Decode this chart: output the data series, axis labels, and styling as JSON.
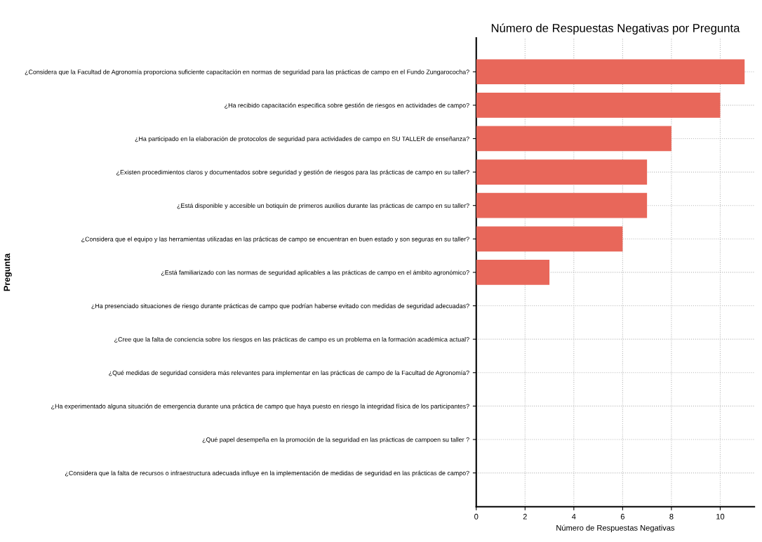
{
  "chart_data": {
    "type": "bar",
    "orientation": "horizontal",
    "title": "Número de Respuestas Negativas por Pregunta",
    "xlabel": "Número de Respuestas Negativas",
    "ylabel": "Pregunta",
    "categories": [
      "¿Considera que la Facultad de Agronomía proporciona suficiente capacitación en normas de seguridad para las prácticas de campo en el Fundo Zungarococha?",
      "¿Ha recibido capacitación especifica sobre gestión de riesgos en actividades de campo?",
      "¿Ha participado en la elaboración de protocolos de seguridad para actividades de campo en SU TALLER de enseñanza?",
      "¿Existen procedimientos claros y documentados sobre seguridad y gestión de riesgos para las prácticas de campo en su taller?",
      "¿Está disponible y accesible un botiquín de primeros auxilios durante las prácticas de campo en su taller?",
      "¿Considera que el equipo y las herramientas utilizadas en las prácticas de campo se encuentran en buen estado y son seguras en su taller?",
      "¿Está familiarizado con las normas de seguridad aplicables a las prácticas de campo en el ámbito agronómico?",
      "¿Ha presenciado situaciones de riesgo durante prácticas de campo que podrían haberse evitado con medidas de seguridad adecuadas?",
      "¿Cree que la falta de conciencia sobre los riesgos en las prácticas de campo es un problema en la formación académica actual?",
      "¿Qué medidas de seguridad considera más relevantes para implementar en las prácticas de campo de la Facultad de Agronomía?",
      "¿Ha experimentado alguna situación de emergencia durante una práctica de campo que haya puesto en riesgo la integridad física de los participantes?",
      "¿Qué papel desempeña en la promoción de la seguridad en las prácticas de campoen su taller ?",
      "¿Considera que la falta de recursos o infraestructura adecuada influye en la implementación de medidas de seguridad en las prácticas de campo?"
    ],
    "values": [
      11,
      10,
      8,
      7,
      7,
      6,
      3,
      0,
      0,
      0,
      0,
      0,
      0
    ],
    "color": "#e8675a",
    "xlim": [
      0,
      11.4
    ],
    "xticks": [
      0,
      2,
      4,
      6,
      8,
      10
    ],
    "grid": true
  }
}
